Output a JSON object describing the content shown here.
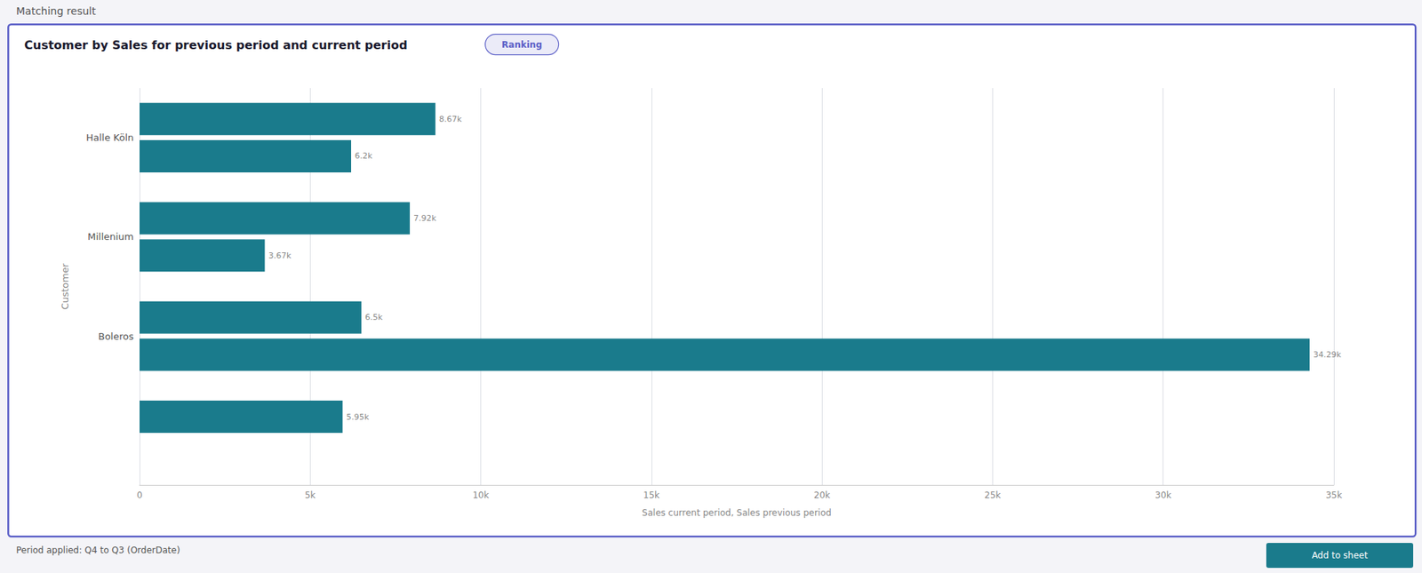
{
  "chart_data": {
    "type": "bar",
    "orientation": "horizontal",
    "title": "Customer by Sales for previous period and current period",
    "xlabel": "Sales current period, Sales previous period",
    "ylabel": "Customer",
    "annotations": [
      "Matching result",
      "Ranking",
      "Period applied: Q4 to Q3 (OrderDate)",
      "Add to sheet"
    ],
    "categories": [
      "Halle Köln",
      "Millenium",
      "Boleros",
      null
    ],
    "series": [
      {
        "color": "#1a7b8c",
        "values": [
          8670,
          7920,
          6500,
          5950
        ],
        "value_labels": [
          "8.67k",
          "7.92k",
          "6.5k",
          "5.95k"
        ]
      },
      {
        "color": "#1a7b8c",
        "values": [
          6200,
          3670,
          34290,
          null
        ],
        "value_labels": [
          "6.2k",
          "3.67k",
          "34.29k",
          null
        ]
      }
    ],
    "xlim": [
      0,
      35000
    ],
    "xticks": [
      0,
      {
        "value": 5000,
        "label": "5k"
      },
      {
        "value": 10000,
        "label": "10k"
      },
      {
        "value": 15000,
        "label": "15k"
      },
      {
        "value": 20000,
        "label": "20k"
      },
      {
        "value": 25000,
        "label": "25k"
      },
      {
        "value": 30000,
        "label": "30k"
      },
      {
        "value": 35000,
        "label": "35k"
      }
    ],
    "grid": true,
    "data_labels": true
  }
}
